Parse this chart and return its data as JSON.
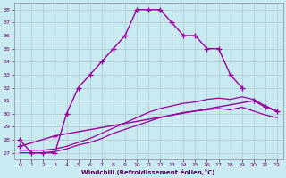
{
  "xlabel": "Windchill (Refroidissement éolien,°C)",
  "background_color": "#c8eaf0",
  "grid_color": "#b0c4cc",
  "line_color": "#990099",
  "xlim": [
    -0.5,
    22.5
  ],
  "ylim": [
    26.5,
    38.5
  ],
  "yticks": [
    27,
    28,
    29,
    30,
    31,
    32,
    33,
    34,
    35,
    36,
    37,
    38
  ],
  "xticks": [
    0,
    1,
    2,
    3,
    4,
    5,
    6,
    7,
    8,
    9,
    10,
    11,
    12,
    13,
    14,
    15,
    16,
    17,
    18,
    19,
    20,
    21,
    22
  ],
  "series1_x": [
    0,
    1,
    2,
    3,
    4,
    5,
    6,
    7,
    8,
    9,
    10,
    11,
    12,
    13,
    14,
    15,
    16,
    17,
    18,
    19
  ],
  "series1_y": [
    28,
    27,
    27,
    27,
    30,
    32,
    33,
    34,
    35,
    36,
    38,
    38,
    38,
    37,
    36,
    36,
    35,
    35,
    33,
    32
  ],
  "series2_x": [
    0,
    3,
    20,
    21,
    22
  ],
  "series2_y": [
    27.5,
    28.3,
    31.0,
    30.5,
    30.2
  ],
  "series3_x": [
    0,
    1,
    2,
    3,
    4,
    5,
    6,
    7,
    8,
    9,
    10,
    11,
    12,
    13,
    14,
    15,
    16,
    17,
    18,
    19,
    20,
    21,
    22
  ],
  "series3_y": [
    27.2,
    27.2,
    27.2,
    27.3,
    27.5,
    27.8,
    28.1,
    28.5,
    28.9,
    29.3,
    29.7,
    30.1,
    30.4,
    30.6,
    30.8,
    30.9,
    31.1,
    31.2,
    31.1,
    31.3,
    31.1,
    30.6,
    30.2
  ],
  "series4_x": [
    0,
    1,
    2,
    3,
    4,
    5,
    6,
    7,
    8,
    9,
    10,
    11,
    12,
    13,
    14,
    15,
    16,
    17,
    18,
    19,
    20,
    21,
    22
  ],
  "series4_y": [
    27.0,
    27.0,
    27.0,
    27.1,
    27.3,
    27.6,
    27.8,
    28.1,
    28.5,
    28.8,
    29.1,
    29.4,
    29.7,
    29.9,
    30.1,
    30.2,
    30.3,
    30.4,
    30.3,
    30.5,
    30.2,
    29.9,
    29.7
  ]
}
